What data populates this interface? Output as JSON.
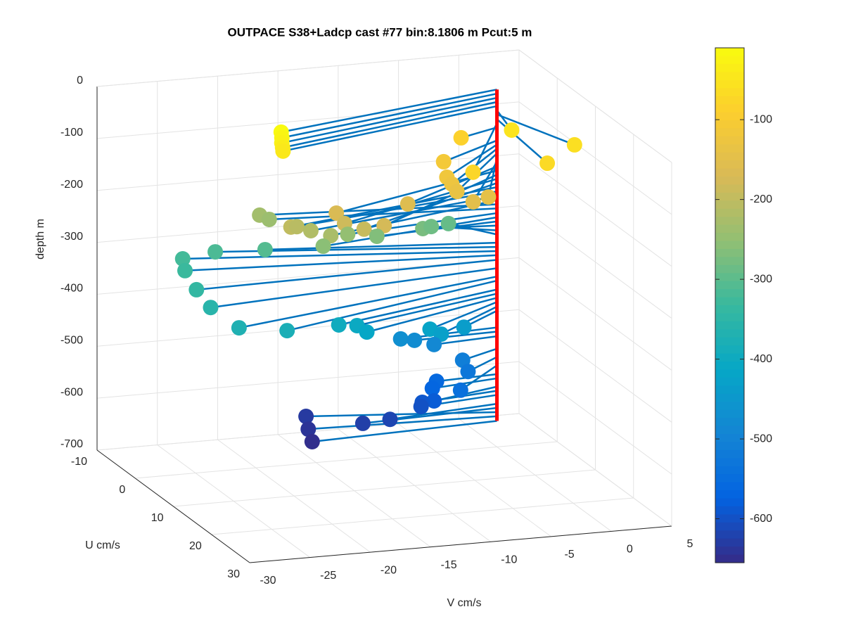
{
  "chart_data": {
    "type": "scatter3",
    "title": "OUTPACE S38+Ladcp cast #77 bin:8.1806 m  Pcut:5 m",
    "xlabel": "V cm/s",
    "ylabel": "U cm/s",
    "zlabel": "depth m",
    "xlim": [
      -30,
      5
    ],
    "xticks": [
      -30,
      -25,
      -20,
      -15,
      -10,
      -5,
      0,
      5
    ],
    "ylim": [
      -10,
      30
    ],
    "yticks": [
      -10,
      0,
      10,
      20,
      30
    ],
    "zlim": [
      -700,
      0
    ],
    "zticks": [
      -700,
      -600,
      -500,
      -400,
      -300,
      -200,
      -100,
      0
    ],
    "grid": true,
    "line_color": "#0072bd",
    "profile_color": "#ff0000",
    "clim": [
      -655,
      -10
    ],
    "cticks": [
      -600,
      -500,
      -400,
      -300,
      -200,
      -100
    ],
    "colormap": [
      "#352a87",
      "#0363e1",
      "#1485d4",
      "#06a7c6",
      "#38b99e",
      "#92bf73",
      "#d9ba56",
      "#fcce2e",
      "#f9fb0e"
    ],
    "x": [
      -20.3,
      -20.4,
      -20.5,
      -20.5,
      -20.4,
      -0.9,
      2.7,
      -0.7,
      -3.7,
      -6.7,
      -6.1,
      -7.0,
      -6.9,
      -6.8,
      -4.6,
      -5.8,
      -10.4,
      -16.2,
      -13.5,
      -15.8,
      -14.5,
      -19.3,
      -18.4,
      -17.3,
      -18.7,
      -18.0,
      -15.9,
      -13.2,
      -15.8,
      -10.4,
      -5.8,
      -4.5,
      -2.5,
      -17.9,
      -21.4,
      -24.1,
      -24.7,
      -25.3,
      -25.2,
      -24.3,
      -20.6,
      -15.3,
      -13.6,
      -13.1,
      -7.7,
      -6.9,
      -4.1,
      -8.3,
      -7.0,
      -5.5,
      -3.7,
      -3.6,
      -5.2,
      -5.2,
      -5.8,
      -6.1,
      -6.7,
      -6.8,
      -9.5,
      -11.5,
      -14.6,
      -15.3,
      -15.8
    ],
    "y": [
      7.6,
      8.1,
      8.4,
      8.6,
      8.4,
      6.7,
      11.8,
      15.4,
      2.3,
      14.9,
      5.3,
      9.0,
      10.0,
      11.0,
      12.3,
      12.1,
      9.5,
      9.1,
      13.1,
      10.0,
      11.0,
      7.0,
      5.7,
      5.9,
      -3.1,
      -2.8,
      6.7,
      2.6,
      4.4,
      1.4,
      -1.1,
      -3.0,
      -4.8,
      -4.2,
      -6.2,
      -6.2,
      -3.7,
      1.2,
      4.6,
      9.2,
      10.1,
      6.9,
      6.3,
      7.3,
      6.8,
      7.2,
      4.3,
      1.0,
      0.5,
      0.9,
      2.7,
      3.8,
      6.9,
      0.6,
      1.4,
      2.8,
      1.6,
      1.6,
      2.0,
      1.2,
      -3.9,
      -1.1,
      1.5
    ],
    "z": [
      -12,
      -20,
      -28,
      -36,
      -44,
      -52,
      -60,
      -69,
      -85,
      -77,
      -110,
      -118,
      -126,
      -135,
      -143,
      -151,
      -160,
      -168,
      -176,
      -184,
      -192,
      -200,
      -208,
      -217,
      -233,
      -241,
      -225,
      -250,
      -258,
      -266,
      -274,
      -283,
      -291,
      -307,
      -315,
      -323,
      -331,
      -340,
      -356,
      -372,
      -380,
      -397,
      -405,
      -413,
      -421,
      -430,
      -438,
      -470,
      -478,
      -487,
      -511,
      -527,
      -543,
      -560,
      -568,
      -584,
      -592,
      -600,
      -617,
      -625,
      -633,
      -641,
      -650
    ]
  }
}
